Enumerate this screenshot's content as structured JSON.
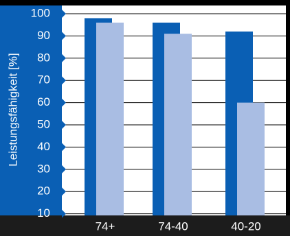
{
  "colors": {
    "primary_blue": "#0a5fb4",
    "light_bar": "#a9bde3",
    "background": "#ffffff",
    "frame": "#1c1c1c",
    "tick_text": "#ffffff",
    "category_text": "#ffffff",
    "grid": "#000000"
  },
  "chart_data": {
    "type": "bar",
    "title": "",
    "xlabel": "",
    "ylabel": "Leistungsfähigkeit [%]",
    "ylim": [
      0,
      100
    ],
    "yticks": [
      10,
      20,
      30,
      40,
      50,
      60,
      70,
      80,
      90,
      100
    ],
    "categories": [
      "74+",
      "74-40",
      "40-20"
    ],
    "series": [
      {
        "color": "#0a5fb4",
        "values": [
          98,
          96,
          92
        ]
      },
      {
        "color": "#a9bde3",
        "values": [
          96,
          91,
          60
        ]
      }
    ],
    "grid": true,
    "legend": "none"
  }
}
